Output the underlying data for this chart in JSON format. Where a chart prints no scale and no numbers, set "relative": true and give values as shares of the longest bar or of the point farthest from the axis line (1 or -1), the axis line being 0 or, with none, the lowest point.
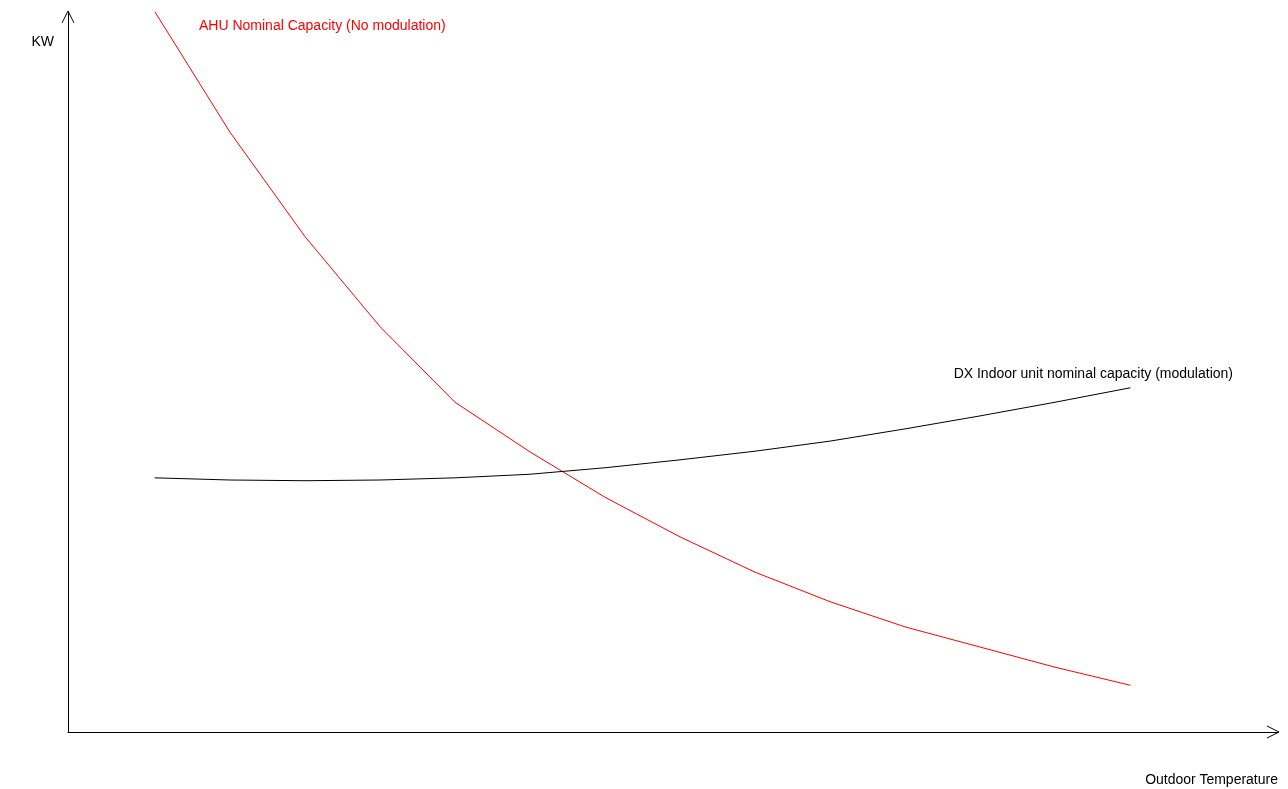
{
  "chart_data": {
    "type": "line",
    "relative": true,
    "xlabel": "Outdoor Temperature",
    "ylabel": "KW",
    "marker": "none",
    "line_style": "solid",
    "categories": [
      null,
      null,
      null,
      null,
      null,
      null,
      null,
      null,
      null,
      null,
      null,
      null,
      null,
      null
    ],
    "series": [
      {
        "name": "AHU Nominal Capacity (No modulation)",
        "color": "#ff0000",
        "values": [
          1,
          0.833,
          0.688,
          0.563,
          0.458,
          0.389,
          0.326,
          0.271,
          0.222,
          0.181,
          0.146,
          0.118,
          0.09,
          0.065
        ]
      },
      {
        "name": "DX Indoor unit nominal capacity (modulation)",
        "color": "#000000",
        "values": [
          0.353,
          0.35,
          0.349,
          0.35,
          0.353,
          0.358,
          0.367,
          0.378,
          0.39,
          0.404,
          0.421,
          0.439,
          0.458,
          0.478
        ]
      }
    ]
  }
}
